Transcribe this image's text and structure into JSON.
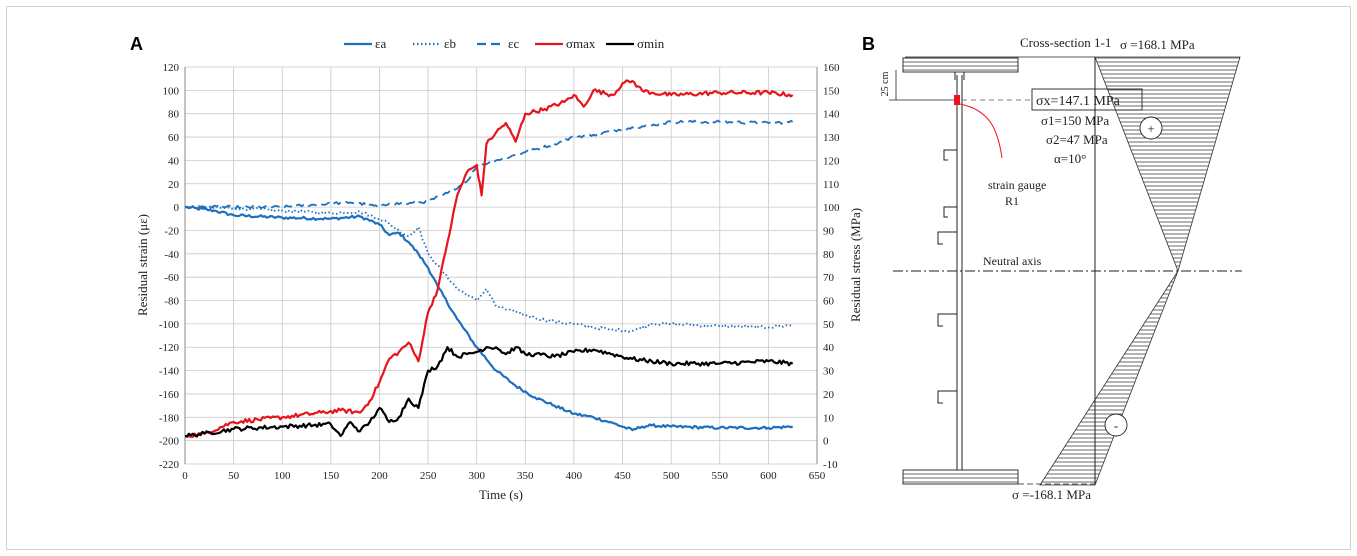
{
  "panel_a_letter": "A",
  "panel_b_letter": "B",
  "colors": {
    "blue": "#1f6fbf",
    "red": "#e8141b",
    "black": "#000000"
  },
  "chart_data": {
    "type": "line",
    "xlabel": "Time (s)",
    "ylabel": "Residual strain (με)",
    "y2label": "Residual stress (MPa)",
    "xlim": [
      0,
      650
    ],
    "ylim": [
      -220,
      120
    ],
    "y2lim": [
      -10,
      160
    ],
    "xticks": [
      "0",
      "50",
      "100",
      "150",
      "200",
      "250",
      "300",
      "350",
      "400",
      "450",
      "500",
      "550",
      "600",
      "650"
    ],
    "yticks": [
      "120",
      "100",
      "80",
      "60",
      "40",
      "20",
      "0",
      "-20",
      "-40",
      "-60",
      "-80",
      "-100",
      "-120",
      "-140",
      "-160",
      "-180",
      "-200",
      "-220"
    ],
    "y2ticks": [
      "160",
      "150",
      "140",
      "130",
      "120",
      "110",
      "100",
      "90",
      "80",
      "70",
      "60",
      "50",
      "40",
      "30",
      "20",
      "10",
      "0",
      "-10"
    ],
    "grid": true,
    "legend": "top",
    "series": [
      {
        "name": "εa",
        "axis": "left",
        "style": "solid",
        "color": "#1f6fbf",
        "x": [
          0,
          30,
          50,
          100,
          150,
          180,
          200,
          210,
          220,
          230,
          240,
          250,
          260,
          280,
          300,
          320,
          340,
          360,
          380,
          400,
          420,
          440,
          460,
          470,
          480,
          500,
          550,
          600,
          625
        ],
        "y": [
          0,
          -3,
          -7,
          -9,
          -10,
          -8,
          -15,
          -24,
          -22,
          -30,
          -40,
          -52,
          -68,
          -96,
          -120,
          -140,
          -153,
          -163,
          -170,
          -177,
          -180,
          -185,
          -191,
          -188,
          -187,
          -188,
          -189,
          -189,
          -188
        ]
      },
      {
        "name": "εb",
        "axis": "left",
        "style": "dotted",
        "color": "#1f6fbf",
        "x": [
          0,
          50,
          100,
          150,
          180,
          200,
          210,
          220,
          230,
          240,
          250,
          260,
          280,
          300,
          310,
          320,
          340,
          360,
          380,
          400,
          420,
          440,
          460,
          480,
          500,
          550,
          600,
          625
        ],
        "y": [
          0,
          -1,
          -3,
          -5,
          -4,
          -10,
          -14,
          -20,
          -25,
          -17,
          -40,
          -50,
          -70,
          -80,
          -70,
          -85,
          -90,
          -95,
          -98,
          -100,
          -103,
          -105,
          -106,
          -100,
          -100,
          -102,
          -103,
          -101
        ]
      },
      {
        "name": "εc",
        "axis": "left",
        "style": "dashed",
        "color": "#1f6fbf",
        "x": [
          0,
          50,
          100,
          150,
          170,
          190,
          200,
          210,
          230,
          250,
          270,
          290,
          300,
          320,
          350,
          380,
          400,
          420,
          450,
          480,
          500,
          550,
          600,
          625
        ],
        "y": [
          0,
          0,
          0,
          3,
          4,
          2,
          0,
          3,
          3,
          5,
          12,
          22,
          35,
          40,
          47,
          54,
          60,
          62,
          67,
          70,
          73,
          73,
          72,
          73
        ]
      },
      {
        "name": "σmax",
        "axis": "right",
        "style": "solid",
        "color": "#e8141b",
        "x": [
          0,
          20,
          50,
          100,
          140,
          160,
          180,
          190,
          200,
          210,
          220,
          230,
          240,
          250,
          260,
          270,
          280,
          290,
          300,
          305,
          310,
          320,
          330,
          340,
          350,
          370,
          390,
          400,
          410,
          420,
          440,
          450,
          460,
          470,
          480,
          500,
          550,
          600,
          625
        ],
        "y": [
          2,
          3,
          8,
          10,
          12,
          13,
          12,
          17,
          25,
          35,
          38,
          42,
          34,
          55,
          65,
          85,
          105,
          115,
          118,
          105,
          127,
          132,
          136,
          128,
          140,
          142,
          145,
          148,
          143,
          150,
          148,
          153,
          154,
          150,
          149,
          148,
          149,
          149,
          148
        ]
      },
      {
        "name": "σmin",
        "axis": "right",
        "style": "solid",
        "color": "#000000",
        "x": [
          0,
          20,
          50,
          100,
          150,
          160,
          170,
          180,
          190,
          200,
          210,
          220,
          230,
          240,
          250,
          260,
          270,
          280,
          290,
          300,
          310,
          320,
          330,
          340,
          350,
          360,
          380,
          400,
          420,
          440,
          460,
          480,
          500,
          550,
          600,
          625
        ],
        "y": [
          2,
          3,
          5,
          6,
          7,
          2,
          8,
          4,
          8,
          14,
          8,
          10,
          18,
          14,
          30,
          32,
          40,
          36,
          37,
          38,
          40,
          40,
          37,
          40,
          37,
          37,
          36,
          38,
          39,
          37,
          35,
          34,
          33,
          33,
          34,
          33
        ]
      }
    ]
  },
  "diagram": {
    "title": "Cross-section 1-1",
    "top_stress": "σ =168.1 MPa",
    "bottom_stress": "σ =-168.1 MPa",
    "dim_label": "25 cm",
    "sigma_x": "σx=147.1 MPa",
    "sigma_1": "σ1=150 MPa",
    "sigma_2": "σ2=47 MPa",
    "alpha": "α=10°",
    "gauge_line1": "strain gauge",
    "gauge_line2": "R1",
    "neutral_axis": "Neutral axis",
    "plus": "+",
    "minus": "-"
  }
}
